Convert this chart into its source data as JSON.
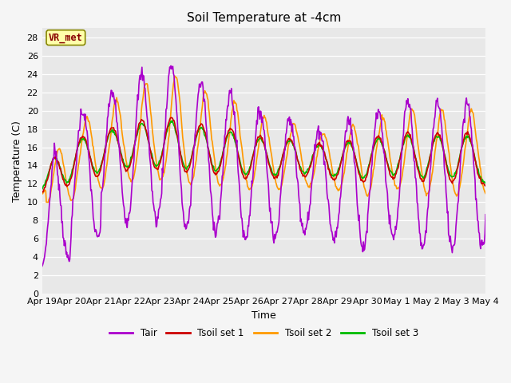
{
  "title": "Soil Temperature at -4cm",
  "xlabel": "Time",
  "ylabel": "Temperature (C)",
  "ylim": [
    0,
    29
  ],
  "bg_color": "#e8e8e8",
  "fig_color": "#f5f5f5",
  "line_colors": {
    "Tair": "#aa00cc",
    "Tsoil1": "#cc0000",
    "Tsoil2": "#ff9900",
    "Tsoil3": "#00bb00"
  },
  "annotation_text": "VR_met",
  "annotation_color": "#880000",
  "annotation_bg": "#ffffaa",
  "annotation_edge": "#888800",
  "yticks": [
    0,
    2,
    4,
    6,
    8,
    10,
    12,
    14,
    16,
    18,
    20,
    22,
    24,
    26,
    28
  ],
  "xtick_labels": [
    "Apr 19",
    "Apr 20",
    "Apr 21",
    "Apr 22",
    "Apr 23",
    "Apr 24",
    "Apr 25",
    "Apr 26",
    "Apr 27",
    "Apr 28",
    "Apr 29",
    "Apr 30",
    "May 1",
    "May 2",
    "May 3",
    "May 4"
  ],
  "n_points": 720
}
